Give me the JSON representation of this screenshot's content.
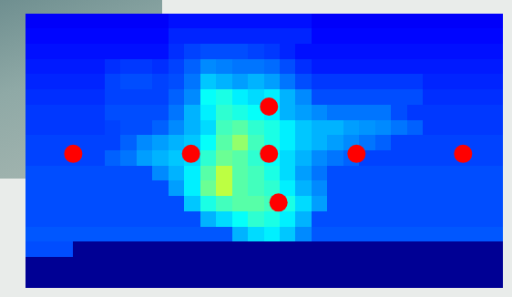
{
  "chart_data": {
    "type": "heatmap",
    "tick_labels": false,
    "xlim": [
      0,
      30
    ],
    "ylim": [
      0,
      18
    ],
    "zlim": [
      0,
      1
    ],
    "cells": [
      [
        0.12,
        0.12,
        0.12,
        0.12,
        0.12,
        0.12,
        0.12,
        0.12,
        0.12,
        0.14,
        0.14,
        0.14,
        0.14,
        0.14,
        0.14,
        0.14,
        0.14,
        0.14,
        0.12,
        0.12,
        0.12,
        0.12,
        0.12,
        0.12,
        0.12,
        0.12,
        0.12,
        0.12,
        0.12,
        0.12
      ],
      [
        0.13,
        0.13,
        0.13,
        0.13,
        0.13,
        0.13,
        0.13,
        0.13,
        0.13,
        0.16,
        0.16,
        0.16,
        0.16,
        0.16,
        0.16,
        0.16,
        0.16,
        0.16,
        0.13,
        0.13,
        0.13,
        0.13,
        0.13,
        0.13,
        0.13,
        0.13,
        0.13,
        0.13,
        0.13,
        0.13
      ],
      [
        0.14,
        0.14,
        0.14,
        0.14,
        0.14,
        0.14,
        0.14,
        0.14,
        0.14,
        0.17,
        0.19,
        0.2,
        0.2,
        0.2,
        0.19,
        0.18,
        0.16,
        0.14,
        0.14,
        0.14,
        0.14,
        0.14,
        0.14,
        0.14,
        0.14,
        0.14,
        0.14,
        0.14,
        0.14,
        0.14
      ],
      [
        0.15,
        0.15,
        0.15,
        0.15,
        0.15,
        0.17,
        0.18,
        0.18,
        0.17,
        0.19,
        0.22,
        0.26,
        0.25,
        0.24,
        0.24,
        0.23,
        0.2,
        0.17,
        0.15,
        0.15,
        0.15,
        0.15,
        0.15,
        0.15,
        0.15,
        0.15,
        0.15,
        0.15,
        0.15,
        0.15
      ],
      [
        0.16,
        0.16,
        0.16,
        0.16,
        0.16,
        0.19,
        0.2,
        0.2,
        0.19,
        0.2,
        0.24,
        0.32,
        0.3,
        0.28,
        0.3,
        0.28,
        0.24,
        0.2,
        0.18,
        0.18,
        0.18,
        0.18,
        0.18,
        0.18,
        0.18,
        0.16,
        0.16,
        0.16,
        0.16,
        0.16
      ],
      [
        0.17,
        0.17,
        0.17,
        0.17,
        0.17,
        0.19,
        0.19,
        0.19,
        0.19,
        0.22,
        0.26,
        0.38,
        0.4,
        0.36,
        0.34,
        0.36,
        0.3,
        0.26,
        0.2,
        0.2,
        0.2,
        0.2,
        0.2,
        0.2,
        0.2,
        0.17,
        0.17,
        0.17,
        0.17,
        0.17
      ],
      [
        0.18,
        0.18,
        0.18,
        0.18,
        0.18,
        0.2,
        0.2,
        0.2,
        0.2,
        0.24,
        0.3,
        0.36,
        0.42,
        0.4,
        0.38,
        0.36,
        0.3,
        0.28,
        0.26,
        0.24,
        0.24,
        0.24,
        0.24,
        0.2,
        0.18,
        0.18,
        0.18,
        0.18,
        0.18,
        0.18
      ],
      [
        0.18,
        0.18,
        0.18,
        0.18,
        0.18,
        0.19,
        0.2,
        0.2,
        0.22,
        0.26,
        0.3,
        0.34,
        0.44,
        0.46,
        0.42,
        0.4,
        0.36,
        0.32,
        0.3,
        0.3,
        0.28,
        0.27,
        0.26,
        0.24,
        0.22,
        0.18,
        0.18,
        0.18,
        0.18,
        0.18
      ],
      [
        0.19,
        0.19,
        0.19,
        0.19,
        0.19,
        0.19,
        0.22,
        0.26,
        0.28,
        0.3,
        0.32,
        0.38,
        0.46,
        0.52,
        0.44,
        0.4,
        0.36,
        0.32,
        0.3,
        0.28,
        0.26,
        0.24,
        0.22,
        0.19,
        0.19,
        0.19,
        0.19,
        0.19,
        0.19,
        0.19
      ],
      [
        0.19,
        0.19,
        0.19,
        0.19,
        0.19,
        0.22,
        0.24,
        0.28,
        0.3,
        0.32,
        0.34,
        0.42,
        0.48,
        0.46,
        0.42,
        0.38,
        0.34,
        0.3,
        0.26,
        0.24,
        0.22,
        0.19,
        0.19,
        0.19,
        0.19,
        0.19,
        0.19,
        0.19,
        0.19,
        0.19
      ],
      [
        0.2,
        0.2,
        0.2,
        0.2,
        0.2,
        0.2,
        0.2,
        0.2,
        0.26,
        0.3,
        0.36,
        0.46,
        0.56,
        0.46,
        0.44,
        0.4,
        0.34,
        0.28,
        0.24,
        0.2,
        0.2,
        0.2,
        0.2,
        0.2,
        0.2,
        0.2,
        0.2,
        0.2,
        0.2,
        0.2
      ],
      [
        0.2,
        0.2,
        0.2,
        0.2,
        0.2,
        0.2,
        0.2,
        0.2,
        0.2,
        0.28,
        0.36,
        0.48,
        0.56,
        0.46,
        0.44,
        0.42,
        0.36,
        0.3,
        0.26,
        0.2,
        0.2,
        0.2,
        0.2,
        0.2,
        0.2,
        0.2,
        0.2,
        0.2,
        0.2,
        0.2
      ],
      [
        0.2,
        0.2,
        0.2,
        0.2,
        0.2,
        0.2,
        0.2,
        0.2,
        0.2,
        0.2,
        0.32,
        0.4,
        0.44,
        0.46,
        0.46,
        0.44,
        0.4,
        0.34,
        0.28,
        0.2,
        0.2,
        0.2,
        0.2,
        0.2,
        0.2,
        0.2,
        0.2,
        0.2,
        0.2,
        0.2
      ],
      [
        0.2,
        0.2,
        0.2,
        0.2,
        0.2,
        0.2,
        0.2,
        0.2,
        0.2,
        0.2,
        0.2,
        0.3,
        0.34,
        0.38,
        0.42,
        0.4,
        0.36,
        0.3,
        0.2,
        0.2,
        0.2,
        0.2,
        0.2,
        0.2,
        0.2,
        0.2,
        0.2,
        0.2,
        0.2,
        0.2
      ],
      [
        0.21,
        0.21,
        0.21,
        0.21,
        0.21,
        0.21,
        0.21,
        0.21,
        0.21,
        0.21,
        0.21,
        0.21,
        0.21,
        0.3,
        0.34,
        0.36,
        0.32,
        0.26,
        0.21,
        0.21,
        0.21,
        0.21,
        0.21,
        0.21,
        0.21,
        0.21,
        0.21,
        0.21,
        0.21,
        0.21
      ],
      [
        0.2,
        0.2,
        0.2,
        0.02,
        0.02,
        0.02,
        0.02,
        0.02,
        0.02,
        0.02,
        0.02,
        0.02,
        0.02,
        0.02,
        0.02,
        0.02,
        0.02,
        0.02,
        0.02,
        0.02,
        0.02,
        0.02,
        0.02,
        0.02,
        0.02,
        0.02,
        0.02,
        0.02,
        0.02,
        0.02
      ],
      [
        0.02,
        0.02,
        0.02,
        0.02,
        0.02,
        0.02,
        0.02,
        0.02,
        0.02,
        0.02,
        0.02,
        0.02,
        0.02,
        0.02,
        0.02,
        0.02,
        0.02,
        0.02,
        0.02,
        0.02,
        0.02,
        0.02,
        0.02,
        0.02,
        0.02,
        0.02,
        0.02,
        0.02,
        0.02,
        0.02
      ],
      [
        0.02,
        0.02,
        0.02,
        0.02,
        0.02,
        0.02,
        0.02,
        0.02,
        0.02,
        0.02,
        0.02,
        0.02,
        0.02,
        0.02,
        0.02,
        0.02,
        0.02,
        0.02,
        0.02,
        0.02,
        0.02,
        0.02,
        0.02,
        0.02,
        0.02,
        0.02,
        0.02,
        0.02,
        0.02,
        0.02
      ]
    ],
    "series": [
      {
        "type": "scatter",
        "color": "#ff0000",
        "marker": "circle",
        "x": [
          3.0,
          10.4,
          15.3,
          20.8,
          27.5,
          15.3,
          15.9
        ],
        "values": [
          8.8,
          8.8,
          8.8,
          8.8,
          8.8,
          11.9,
          5.6
        ]
      }
    ]
  }
}
